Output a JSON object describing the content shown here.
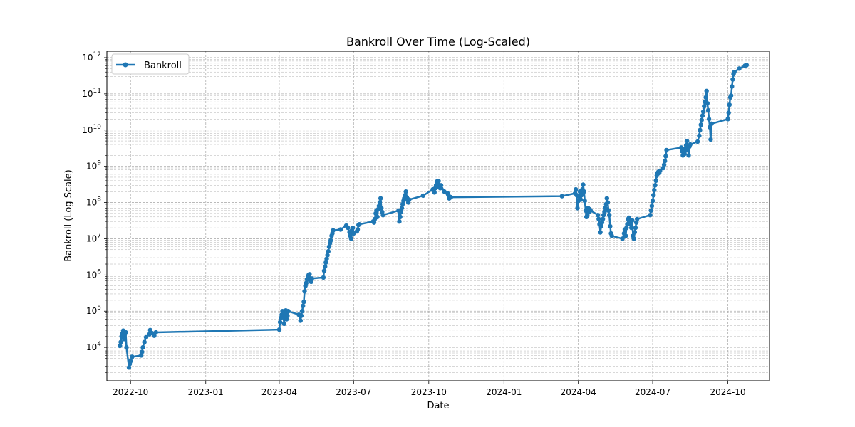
{
  "chart_data": {
    "type": "line",
    "title": "Bankroll Over Time (Log-Scaled)",
    "xlabel": "Date",
    "ylabel": "Bankroll (Log Scale)",
    "yscale": "log",
    "grid": true,
    "legend_position": "top-left",
    "x_ticks": [
      "2022-10",
      "2023-01",
      "2023-04",
      "2023-07",
      "2023-10",
      "2024-01",
      "2024-04",
      "2024-07",
      "2024-10"
    ],
    "xlim": [
      "2022-09-02",
      "2024-11-21"
    ],
    "y_ticks": [
      10000,
      100000,
      1000000,
      10000000,
      100000000,
      1000000000,
      10000000000,
      100000000000,
      1000000000000
    ],
    "ylim": [
      1200,
      1500000000000
    ],
    "series": [
      {
        "name": "Bankroll",
        "color": "#1f77b4",
        "marker": "circle",
        "points": [
          [
            "2022-09-18",
            11000
          ],
          [
            "2022-09-19",
            14000
          ],
          [
            "2022-09-20",
            20000
          ],
          [
            "2022-09-21",
            24000
          ],
          [
            "2022-09-22",
            29000
          ],
          [
            "2022-09-23",
            17000
          ],
          [
            "2022-09-24",
            23000
          ],
          [
            "2022-09-25",
            26000
          ],
          [
            "2022-09-26",
            10000
          ],
          [
            "2022-09-29",
            2800
          ],
          [
            "2022-09-30",
            3500
          ],
          [
            "2022-10-01",
            4200
          ],
          [
            "2022-10-03",
            5500
          ],
          [
            "2022-10-14",
            6000
          ],
          [
            "2022-10-15",
            7500
          ],
          [
            "2022-10-16",
            10000
          ],
          [
            "2022-10-18",
            14000
          ],
          [
            "2022-10-20",
            19000
          ],
          [
            "2022-10-24",
            23000
          ],
          [
            "2022-10-25",
            30000
          ],
          [
            "2022-10-27",
            25000
          ],
          [
            "2022-10-30",
            21000
          ],
          [
            "2022-11-01",
            26000
          ],
          [
            "2023-04-01",
            31000
          ],
          [
            "2023-04-02",
            50000
          ],
          [
            "2023-04-03",
            65000
          ],
          [
            "2023-04-04",
            80000
          ],
          [
            "2023-04-05",
            100000
          ],
          [
            "2023-04-06",
            70000
          ],
          [
            "2023-04-07",
            45000
          ],
          [
            "2023-04-08",
            90000
          ],
          [
            "2023-04-09",
            105000
          ],
          [
            "2023-04-10",
            60000
          ],
          [
            "2023-04-11",
            75000
          ],
          [
            "2023-04-12",
            100000
          ],
          [
            "2023-04-25",
            80000
          ],
          [
            "2023-04-27",
            55000
          ],
          [
            "2023-04-28",
            75000
          ],
          [
            "2023-04-29",
            100000
          ],
          [
            "2023-04-30",
            140000
          ],
          [
            "2023-05-01",
            180000
          ],
          [
            "2023-05-02",
            350000
          ],
          [
            "2023-05-03",
            500000
          ],
          [
            "2023-05-04",
            600000
          ],
          [
            "2023-05-05",
            750000
          ],
          [
            "2023-05-06",
            900000
          ],
          [
            "2023-05-07",
            1000000
          ],
          [
            "2023-05-08",
            1050000
          ],
          [
            "2023-05-09",
            700000
          ],
          [
            "2023-05-10",
            650000
          ],
          [
            "2023-05-11",
            800000
          ],
          [
            "2023-05-25",
            850000
          ],
          [
            "2023-05-26",
            1300000
          ],
          [
            "2023-05-27",
            1700000
          ],
          [
            "2023-05-28",
            2200000
          ],
          [
            "2023-05-29",
            2800000
          ],
          [
            "2023-05-30",
            3500000
          ],
          [
            "2023-05-31",
            4500000
          ],
          [
            "2023-06-01",
            6000000
          ],
          [
            "2023-06-02",
            7500000
          ],
          [
            "2023-06-03",
            9000000
          ],
          [
            "2023-06-04",
            12000000
          ],
          [
            "2023-06-05",
            14000000
          ],
          [
            "2023-06-06",
            17000000
          ],
          [
            "2023-06-15",
            18000000
          ],
          [
            "2023-06-22",
            23000000
          ],
          [
            "2023-06-24",
            20000000
          ],
          [
            "2023-06-26",
            15000000
          ],
          [
            "2023-06-27",
            12000000
          ],
          [
            "2023-06-28",
            10000000
          ],
          [
            "2023-06-29",
            17000000
          ],
          [
            "2023-06-30",
            20000000
          ],
          [
            "2023-07-01",
            14000000
          ],
          [
            "2023-07-05",
            16000000
          ],
          [
            "2023-07-06",
            18000000
          ],
          [
            "2023-07-07",
            24000000
          ],
          [
            "2023-07-08",
            25000000
          ],
          [
            "2023-07-25",
            30000000
          ],
          [
            "2023-07-26",
            28000000
          ],
          [
            "2023-07-27",
            35000000
          ],
          [
            "2023-07-28",
            50000000
          ],
          [
            "2023-07-29",
            60000000
          ],
          [
            "2023-07-30",
            40000000
          ],
          [
            "2023-07-31",
            65000000
          ],
          [
            "2023-08-01",
            80000000
          ],
          [
            "2023-08-02",
            100000000
          ],
          [
            "2023-08-03",
            130000000
          ],
          [
            "2023-08-04",
            70000000
          ],
          [
            "2023-08-05",
            55000000
          ],
          [
            "2023-08-06",
            45000000
          ],
          [
            "2023-08-25",
            60000000
          ],
          [
            "2023-08-26",
            30000000
          ],
          [
            "2023-08-27",
            40000000
          ],
          [
            "2023-08-28",
            55000000
          ],
          [
            "2023-08-29",
            70000000
          ],
          [
            "2023-08-30",
            90000000
          ],
          [
            "2023-08-31",
            110000000
          ],
          [
            "2023-09-01",
            130000000
          ],
          [
            "2023-09-02",
            160000000
          ],
          [
            "2023-09-03",
            200000000
          ],
          [
            "2023-09-04",
            140000000
          ],
          [
            "2023-09-05",
            120000000
          ],
          [
            "2023-09-06",
            100000000
          ],
          [
            "2023-09-07",
            120000000
          ],
          [
            "2023-09-24",
            155000000
          ],
          [
            "2023-10-06",
            230000000
          ],
          [
            "2023-10-07",
            210000000
          ],
          [
            "2023-10-08",
            190000000
          ],
          [
            "2023-10-09",
            250000000
          ],
          [
            "2023-10-10",
            300000000
          ],
          [
            "2023-10-11",
            380000000
          ],
          [
            "2023-10-12",
            330000000
          ],
          [
            "2023-10-13",
            390000000
          ],
          [
            "2023-10-14",
            260000000
          ],
          [
            "2023-10-15",
            250000000
          ],
          [
            "2023-10-16",
            300000000
          ],
          [
            "2023-10-20",
            200000000
          ],
          [
            "2023-10-24",
            180000000
          ],
          [
            "2023-10-25",
            160000000
          ],
          [
            "2023-10-26",
            130000000
          ],
          [
            "2023-10-28",
            140000000
          ],
          [
            "2024-03-12",
            150000000
          ],
          [
            "2024-03-28",
            180000000
          ],
          [
            "2024-03-29",
            230000000
          ],
          [
            "2024-03-30",
            160000000
          ],
          [
            "2024-03-31",
            70000000
          ],
          [
            "2024-04-01",
            110000000
          ],
          [
            "2024-04-02",
            150000000
          ],
          [
            "2024-04-03",
            200000000
          ],
          [
            "2024-04-04",
            120000000
          ],
          [
            "2024-04-05",
            160000000
          ],
          [
            "2024-04-06",
            230000000
          ],
          [
            "2024-04-07",
            310000000
          ],
          [
            "2024-04-08",
            200000000
          ],
          [
            "2024-04-09",
            110000000
          ],
          [
            "2024-04-10",
            60000000
          ],
          [
            "2024-04-11",
            40000000
          ],
          [
            "2024-04-12",
            45000000
          ],
          [
            "2024-04-13",
            70000000
          ],
          [
            "2024-04-14",
            55000000
          ],
          [
            "2024-04-15",
            65000000
          ],
          [
            "2024-04-16",
            60000000
          ],
          [
            "2024-04-25",
            45000000
          ],
          [
            "2024-04-26",
            35000000
          ],
          [
            "2024-04-27",
            25000000
          ],
          [
            "2024-04-28",
            15000000
          ],
          [
            "2024-04-29",
            22000000
          ],
          [
            "2024-04-30",
            28000000
          ],
          [
            "2024-05-01",
            35000000
          ],
          [
            "2024-05-02",
            45000000
          ],
          [
            "2024-05-03",
            55000000
          ],
          [
            "2024-05-04",
            70000000
          ],
          [
            "2024-05-05",
            90000000
          ],
          [
            "2024-05-06",
            130000000
          ],
          [
            "2024-05-07",
            100000000
          ],
          [
            "2024-05-08",
            60000000
          ],
          [
            "2024-05-09",
            45000000
          ],
          [
            "2024-05-10",
            22000000
          ],
          [
            "2024-05-11",
            14000000
          ],
          [
            "2024-05-12",
            12000000
          ],
          [
            "2024-05-25",
            10000000
          ],
          [
            "2024-05-27",
            14000000
          ],
          [
            "2024-05-28",
            18000000
          ],
          [
            "2024-05-29",
            12000000
          ],
          [
            "2024-05-30",
            20000000
          ],
          [
            "2024-05-31",
            25000000
          ],
          [
            "2024-06-01",
            35000000
          ],
          [
            "2024-06-02",
            38000000
          ],
          [
            "2024-06-03",
            30000000
          ],
          [
            "2024-06-04",
            25000000
          ],
          [
            "2024-06-05",
            20000000
          ],
          [
            "2024-06-06",
            32000000
          ],
          [
            "2024-06-07",
            12000000
          ],
          [
            "2024-06-08",
            10000000
          ],
          [
            "2024-06-09",
            15000000
          ],
          [
            "2024-06-10",
            20000000
          ],
          [
            "2024-06-11",
            28000000
          ],
          [
            "2024-06-12",
            35000000
          ],
          [
            "2024-06-28",
            45000000
          ],
          [
            "2024-06-29",
            60000000
          ],
          [
            "2024-06-30",
            80000000
          ],
          [
            "2024-07-01",
            110000000
          ],
          [
            "2024-07-02",
            160000000
          ],
          [
            "2024-07-03",
            220000000
          ],
          [
            "2024-07-04",
            300000000
          ],
          [
            "2024-07-05",
            400000000
          ],
          [
            "2024-07-06",
            550000000
          ],
          [
            "2024-07-07",
            650000000
          ],
          [
            "2024-07-08",
            700000000
          ],
          [
            "2024-07-09",
            650000000
          ],
          [
            "2024-07-10",
            750000000
          ],
          [
            "2024-07-14",
            900000000
          ],
          [
            "2024-07-15",
            1100000000
          ],
          [
            "2024-07-16",
            1400000000
          ],
          [
            "2024-07-17",
            1900000000
          ],
          [
            "2024-07-18",
            2800000000
          ],
          [
            "2024-08-05",
            3300000000
          ],
          [
            "2024-08-06",
            2600000000
          ],
          [
            "2024-08-07",
            2000000000
          ],
          [
            "2024-08-08",
            3000000000
          ],
          [
            "2024-08-09",
            2200000000
          ],
          [
            "2024-08-10",
            2700000000
          ],
          [
            "2024-08-11",
            3800000000
          ],
          [
            "2024-08-12",
            5000000000
          ],
          [
            "2024-08-13",
            3000000000
          ],
          [
            "2024-08-14",
            2000000000
          ],
          [
            "2024-08-15",
            3500000000
          ],
          [
            "2024-08-16",
            4000000000
          ],
          [
            "2024-08-25",
            4800000000
          ],
          [
            "2024-08-27",
            7000000000
          ],
          [
            "2024-08-28",
            10000000000
          ],
          [
            "2024-08-29",
            14000000000
          ],
          [
            "2024-08-30",
            19000000000
          ],
          [
            "2024-08-31",
            25000000000
          ],
          [
            "2024-09-01",
            32000000000
          ],
          [
            "2024-09-02",
            45000000000
          ],
          [
            "2024-09-03",
            60000000000
          ],
          [
            "2024-09-04",
            80000000000
          ],
          [
            "2024-09-05",
            120000000000
          ],
          [
            "2024-09-06",
            55000000000
          ],
          [
            "2024-09-07",
            35000000000
          ],
          [
            "2024-09-08",
            20000000000
          ],
          [
            "2024-09-09",
            12000000000
          ],
          [
            "2024-09-10",
            5500000000
          ],
          [
            "2024-09-11",
            15000000000
          ],
          [
            "2024-10-01",
            20000000000
          ],
          [
            "2024-10-02",
            30000000000
          ],
          [
            "2024-10-03",
            50000000000
          ],
          [
            "2024-10-04",
            80000000000
          ],
          [
            "2024-10-05",
            90000000000
          ],
          [
            "2024-10-06",
            160000000000
          ],
          [
            "2024-10-07",
            250000000000
          ],
          [
            "2024-10-08",
            350000000000
          ],
          [
            "2024-10-09",
            400000000000
          ],
          [
            "2024-10-15",
            500000000000
          ],
          [
            "2024-10-22",
            600000000000
          ],
          [
            "2024-10-24",
            620000000000
          ]
        ]
      }
    ]
  }
}
